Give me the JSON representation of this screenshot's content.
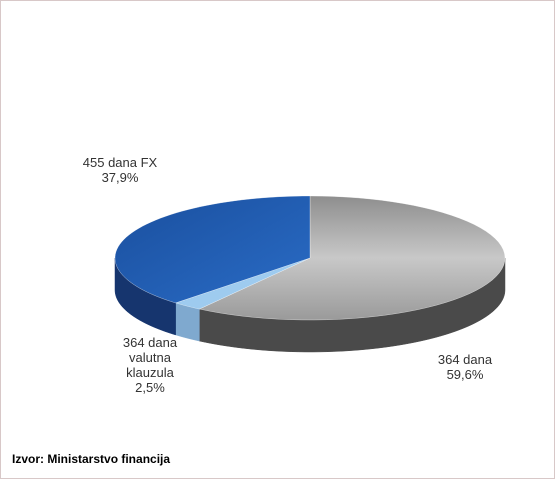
{
  "chart_data": {
    "type": "pie",
    "categories": [
      "364 dana",
      "364 dana valutna klauzula",
      "455 dana FX"
    ],
    "values": [
      59.6,
      2.5,
      37.9
    ],
    "value_labels": [
      "59,6%",
      "2,5%",
      "37,9%"
    ],
    "colors": [
      "#a9a9a9",
      "#9ecbef",
      "#1c58ad"
    ],
    "source": "Izvor: Ministarstvo financija"
  }
}
